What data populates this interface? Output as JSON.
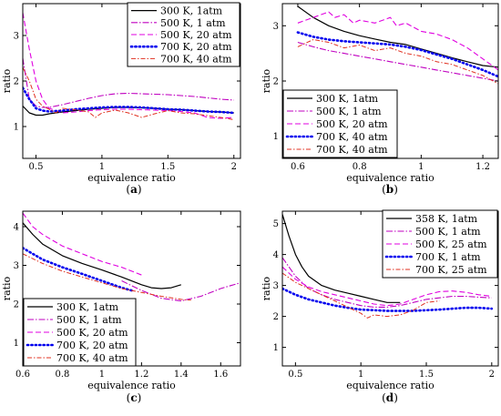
{
  "chart_data": [
    {
      "panel": "a",
      "caption_letter": "a",
      "type": "line",
      "title": "",
      "xlabel": "equivalence ratio",
      "ylabel": "ratio",
      "xlim": [
        0.4,
        2.05
      ],
      "ylim": [
        0.3,
        3.7
      ],
      "xticks": [
        0.5,
        1,
        1.5,
        2
      ],
      "xtick_labels": [
        "0.5",
        "1",
        "1.5",
        "2"
      ],
      "yticks": [
        1,
        2,
        3
      ],
      "ytick_labels": [
        "1",
        "2",
        "3"
      ],
      "grid": false,
      "legend_position": "top-right",
      "series": [
        {
          "name": "300 K, 1atm",
          "color": "#000000",
          "dash": "solid",
          "x": [
            0.4,
            0.45,
            0.5,
            0.55,
            0.6,
            0.7,
            0.8,
            0.9,
            1.0,
            1.1,
            1.2,
            1.3,
            1.4,
            1.5,
            1.6,
            1.7,
            1.8,
            1.9,
            2.0
          ],
          "y": [
            1.45,
            1.3,
            1.25,
            1.25,
            1.28,
            1.32,
            1.35,
            1.38,
            1.4,
            1.42,
            1.42,
            1.41,
            1.4,
            1.38,
            1.37,
            1.35,
            1.33,
            1.32,
            1.3
          ]
        },
        {
          "name": "500 K, 1 atm",
          "color": "#c000c0",
          "dash": "dashdot",
          "x": [
            0.4,
            0.45,
            0.5,
            0.55,
            0.6,
            0.7,
            0.8,
            0.9,
            1.0,
            1.1,
            1.2,
            1.3,
            1.4,
            1.5,
            1.6,
            1.7,
            1.8,
            1.9,
            2.0
          ],
          "y": [
            2.5,
            1.6,
            1.45,
            1.42,
            1.42,
            1.48,
            1.55,
            1.62,
            1.68,
            1.72,
            1.73,
            1.72,
            1.71,
            1.7,
            1.68,
            1.66,
            1.63,
            1.6,
            1.58
          ]
        },
        {
          "name": "500 K, 20 atm",
          "color": "#e000e0",
          "dash": "dashed",
          "x": [
            0.4,
            0.45,
            0.5,
            0.55,
            0.6,
            0.7,
            0.8,
            0.9,
            1.0,
            1.1,
            1.2,
            1.3,
            1.4,
            1.5,
            1.6,
            1.7,
            1.8,
            1.9,
            2.0
          ],
          "y": [
            3.5,
            2.7,
            2.0,
            1.6,
            1.4,
            1.3,
            1.32,
            1.35,
            1.37,
            1.38,
            1.38,
            1.37,
            1.36,
            1.35,
            1.33,
            1.3,
            1.2,
            1.18,
            1.2
          ]
        },
        {
          "name": "700 K, 20 atm",
          "color": "#0000ee",
          "dash": "dotted",
          "x": [
            0.4,
            0.45,
            0.5,
            0.55,
            0.6,
            0.7,
            0.8,
            0.9,
            1.0,
            1.1,
            1.2,
            1.3,
            1.4,
            1.5,
            1.6,
            1.7,
            1.8,
            1.9,
            2.0
          ],
          "y": [
            1.85,
            1.6,
            1.4,
            1.35,
            1.33,
            1.35,
            1.38,
            1.4,
            1.42,
            1.43,
            1.43,
            1.42,
            1.4,
            1.38,
            1.37,
            1.35,
            1.33,
            1.32,
            1.3
          ]
        },
        {
          "name": "700 K, 40 atm",
          "color": "#e03020",
          "dash": "dashdot2",
          "x": [
            0.4,
            0.45,
            0.5,
            0.55,
            0.6,
            0.65,
            0.7,
            0.8,
            0.9,
            0.95,
            1.0,
            1.1,
            1.2,
            1.3,
            1.4,
            1.5,
            1.6,
            1.7,
            1.8,
            1.9,
            2.0
          ],
          "y": [
            2.3,
            2.0,
            1.6,
            1.45,
            1.38,
            1.3,
            1.4,
            1.37,
            1.32,
            1.2,
            1.3,
            1.36,
            1.3,
            1.2,
            1.28,
            1.35,
            1.3,
            1.28,
            1.24,
            1.2,
            1.15
          ]
        }
      ]
    },
    {
      "panel": "b",
      "caption_letter": "b",
      "type": "line",
      "title": "",
      "xlabel": "equivalence ratio",
      "ylabel": "ratio",
      "xlim": [
        0.55,
        1.25
      ],
      "ylim": [
        0.6,
        3.4
      ],
      "xticks": [
        0.6,
        0.8,
        1,
        1.2
      ],
      "xtick_labels": [
        "0.6",
        "0.8",
        "1",
        "1.2"
      ],
      "yticks": [
        1,
        2,
        3
      ],
      "ytick_labels": [
        "1",
        "2",
        "3"
      ],
      "grid": false,
      "legend_position": "bottom-left",
      "series": [
        {
          "name": "300 K, 1atm",
          "color": "#000000",
          "dash": "solid",
          "x": [
            0.6,
            0.65,
            0.7,
            0.75,
            0.8,
            0.85,
            0.9,
            0.95,
            1.0,
            1.05,
            1.1,
            1.15,
            1.2,
            1.25
          ],
          "y": [
            3.35,
            3.15,
            3.0,
            2.9,
            2.82,
            2.76,
            2.7,
            2.66,
            2.58,
            2.5,
            2.42,
            2.35,
            2.28,
            2.25
          ]
        },
        {
          "name": "500 K, 1 atm",
          "color": "#c000c0",
          "dash": "dashdot",
          "x": [
            0.6,
            0.65,
            0.7,
            0.75,
            0.8,
            0.85,
            0.9,
            0.95,
            1.0,
            1.05,
            1.1,
            1.15,
            1.2,
            1.25
          ],
          "y": [
            2.7,
            2.62,
            2.55,
            2.5,
            2.45,
            2.4,
            2.35,
            2.3,
            2.25,
            2.2,
            2.15,
            2.1,
            2.05,
            2.0
          ]
        },
        {
          "name": "500 K, 20 atm",
          "color": "#e000e0",
          "dash": "dashed",
          "x": [
            0.6,
            0.65,
            0.7,
            0.72,
            0.75,
            0.78,
            0.8,
            0.85,
            0.9,
            0.92,
            0.95,
            1.0,
            1.05,
            1.1,
            1.15,
            1.2,
            1.25
          ],
          "y": [
            3.05,
            3.15,
            3.25,
            3.15,
            3.2,
            3.05,
            3.1,
            3.05,
            3.15,
            3.0,
            3.05,
            2.9,
            2.85,
            2.75,
            2.6,
            2.4,
            2.2
          ]
        },
        {
          "name": "700 K, 40 atm",
          "color": "#0000ee",
          "dash": "dotted",
          "x": [
            0.6,
            0.65,
            0.7,
            0.75,
            0.8,
            0.85,
            0.9,
            0.95,
            1.0,
            1.05,
            1.1,
            1.15,
            1.2,
            1.25
          ],
          "y": [
            2.88,
            2.8,
            2.75,
            2.72,
            2.7,
            2.68,
            2.66,
            2.62,
            2.56,
            2.48,
            2.4,
            2.3,
            2.2,
            2.08
          ]
        },
        {
          "name": "700 K, 40 atm",
          "color": "#e03020",
          "dash": "dashdot2",
          "x": [
            0.6,
            0.65,
            0.7,
            0.75,
            0.8,
            0.85,
            0.9,
            0.95,
            1.0,
            1.05,
            1.1,
            1.15,
            1.2,
            1.25
          ],
          "y": [
            2.62,
            2.75,
            2.7,
            2.6,
            2.65,
            2.55,
            2.6,
            2.5,
            2.45,
            2.35,
            2.3,
            2.2,
            2.1,
            1.95
          ]
        }
      ]
    },
    {
      "panel": "c",
      "caption_letter": "c",
      "type": "line",
      "title": "",
      "xlabel": "equivalence ratio",
      "ylabel": "ratio",
      "xlim": [
        0.6,
        1.7
      ],
      "ylim": [
        0.4,
        4.4
      ],
      "xticks": [
        0.6,
        0.8,
        1,
        1.2,
        1.4,
        1.6
      ],
      "xtick_labels": [
        "0.6",
        "0.8",
        "1",
        "1.2",
        "1.4",
        "1.6"
      ],
      "yticks": [
        1,
        2,
        3,
        4
      ],
      "ytick_labels": [
        "1",
        "2",
        "3",
        "4"
      ],
      "grid": false,
      "legend_position": "bottom-left",
      "series": [
        {
          "name": "300 K, 1atm",
          "color": "#000000",
          "dash": "solid",
          "x": [
            0.6,
            0.65,
            0.7,
            0.8,
            0.9,
            1.0,
            1.1,
            1.2,
            1.25,
            1.3,
            1.35,
            1.4
          ],
          "y": [
            4.1,
            3.8,
            3.55,
            3.25,
            3.05,
            2.88,
            2.7,
            2.5,
            2.42,
            2.4,
            2.42,
            2.5
          ]
        },
        {
          "name": "500 K, 1 atm",
          "color": "#c000c0",
          "dash": "dashdot",
          "x": [
            1.1,
            1.2,
            1.3,
            1.4,
            1.5,
            1.6,
            1.7
          ],
          "y": [
            2.6,
            2.35,
            2.15,
            2.08,
            2.2,
            2.4,
            2.55
          ]
        },
        {
          "name": "500 K, 20 atm",
          "color": "#e000e0",
          "dash": "dashed",
          "x": [
            0.6,
            0.65,
            0.7,
            0.8,
            0.9,
            1.0,
            1.1,
            1.2
          ],
          "y": [
            4.35,
            4.0,
            3.8,
            3.5,
            3.3,
            3.1,
            2.95,
            2.75
          ]
        },
        {
          "name": "700 K, 20 atm",
          "color": "#0000ee",
          "dash": "dotted",
          "x": [
            0.6,
            0.7,
            0.8,
            0.9,
            1.0,
            1.1,
            1.15
          ],
          "y": [
            3.45,
            3.15,
            2.95,
            2.78,
            2.6,
            2.42,
            2.35
          ]
        },
        {
          "name": "700 K, 40 atm",
          "color": "#e03020",
          "dash": "dashdot2",
          "x": [
            0.6,
            0.7,
            0.8,
            0.9,
            1.0,
            1.1,
            1.2,
            1.3,
            1.4,
            1.45
          ],
          "y": [
            3.3,
            3.05,
            2.85,
            2.7,
            2.55,
            2.4,
            2.3,
            2.2,
            2.12,
            2.1
          ]
        }
      ]
    },
    {
      "panel": "d",
      "caption_letter": "d",
      "type": "line",
      "title": "",
      "xlabel": "equivalence ratio",
      "ylabel": "ratio",
      "xlim": [
        0.4,
        2.05
      ],
      "ylim": [
        0.4,
        5.4
      ],
      "xticks": [
        0.5,
        1,
        1.5,
        2
      ],
      "xtick_labels": [
        "0.5",
        "1",
        "1.5",
        "2"
      ],
      "yticks": [
        1,
        2,
        3,
        4,
        5
      ],
      "ytick_labels": [
        "1",
        "2",
        "3",
        "4",
        "5"
      ],
      "grid": false,
      "legend_position": "top-right",
      "series": [
        {
          "name": "358 K, 1atm",
          "color": "#000000",
          "dash": "solid",
          "x": [
            0.4,
            0.45,
            0.5,
            0.55,
            0.6,
            0.7,
            0.8,
            0.9,
            1.0,
            1.1,
            1.2,
            1.3
          ],
          "y": [
            5.3,
            4.6,
            4.0,
            3.6,
            3.3,
            3.0,
            2.85,
            2.75,
            2.65,
            2.55,
            2.45,
            2.45
          ]
        },
        {
          "name": "500 K, 1 atm",
          "color": "#c000c0",
          "dash": "dashdot",
          "x": [
            0.4,
            0.5,
            0.6,
            0.7,
            0.8,
            0.9,
            1.0,
            1.1,
            1.2,
            1.3,
            1.4,
            1.5,
            1.6,
            1.7,
            1.8,
            1.9,
            2.0
          ],
          "y": [
            3.9,
            3.3,
            2.9,
            2.7,
            2.55,
            2.45,
            2.35,
            2.3,
            2.3,
            2.35,
            2.45,
            2.55,
            2.6,
            2.65,
            2.65,
            2.62,
            2.6
          ]
        },
        {
          "name": "500 K, 25 atm",
          "color": "#e000e0",
          "dash": "dashed",
          "x": [
            0.4,
            0.5,
            0.6,
            0.7,
            0.8,
            0.9,
            1.0,
            1.1,
            1.2,
            1.3,
            1.4,
            1.5,
            1.6,
            1.7,
            1.8,
            1.9,
            2.0
          ],
          "y": [
            3.6,
            3.2,
            2.95,
            2.8,
            2.7,
            2.6,
            2.5,
            2.4,
            2.35,
            2.4,
            2.55,
            2.7,
            2.8,
            2.82,
            2.78,
            2.7,
            2.65
          ]
        },
        {
          "name": "700 K, 1 atm",
          "color": "#0000ee",
          "dash": "dotted",
          "x": [
            0.4,
            0.5,
            0.6,
            0.7,
            0.8,
            0.9,
            1.0,
            1.1,
            1.2,
            1.3,
            1.4,
            1.5,
            1.6,
            1.7,
            1.8,
            1.9,
            2.0
          ],
          "y": [
            2.9,
            2.7,
            2.55,
            2.45,
            2.35,
            2.28,
            2.22,
            2.2,
            2.18,
            2.18,
            2.18,
            2.2,
            2.22,
            2.25,
            2.28,
            2.28,
            2.25
          ]
        },
        {
          "name": "700 K, 25 atm",
          "color": "#e03020",
          "dash": "dashdot2",
          "x": [
            0.4,
            0.5,
            0.6,
            0.7,
            0.8,
            0.9,
            1.0,
            1.05,
            1.1,
            1.2,
            1.3,
            1.4,
            1.5,
            1.6
          ],
          "y": [
            3.4,
            3.1,
            2.9,
            2.7,
            2.5,
            2.3,
            2.1,
            1.95,
            2.05,
            2.0,
            2.05,
            2.2,
            2.45,
            2.5
          ]
        }
      ]
    }
  ]
}
